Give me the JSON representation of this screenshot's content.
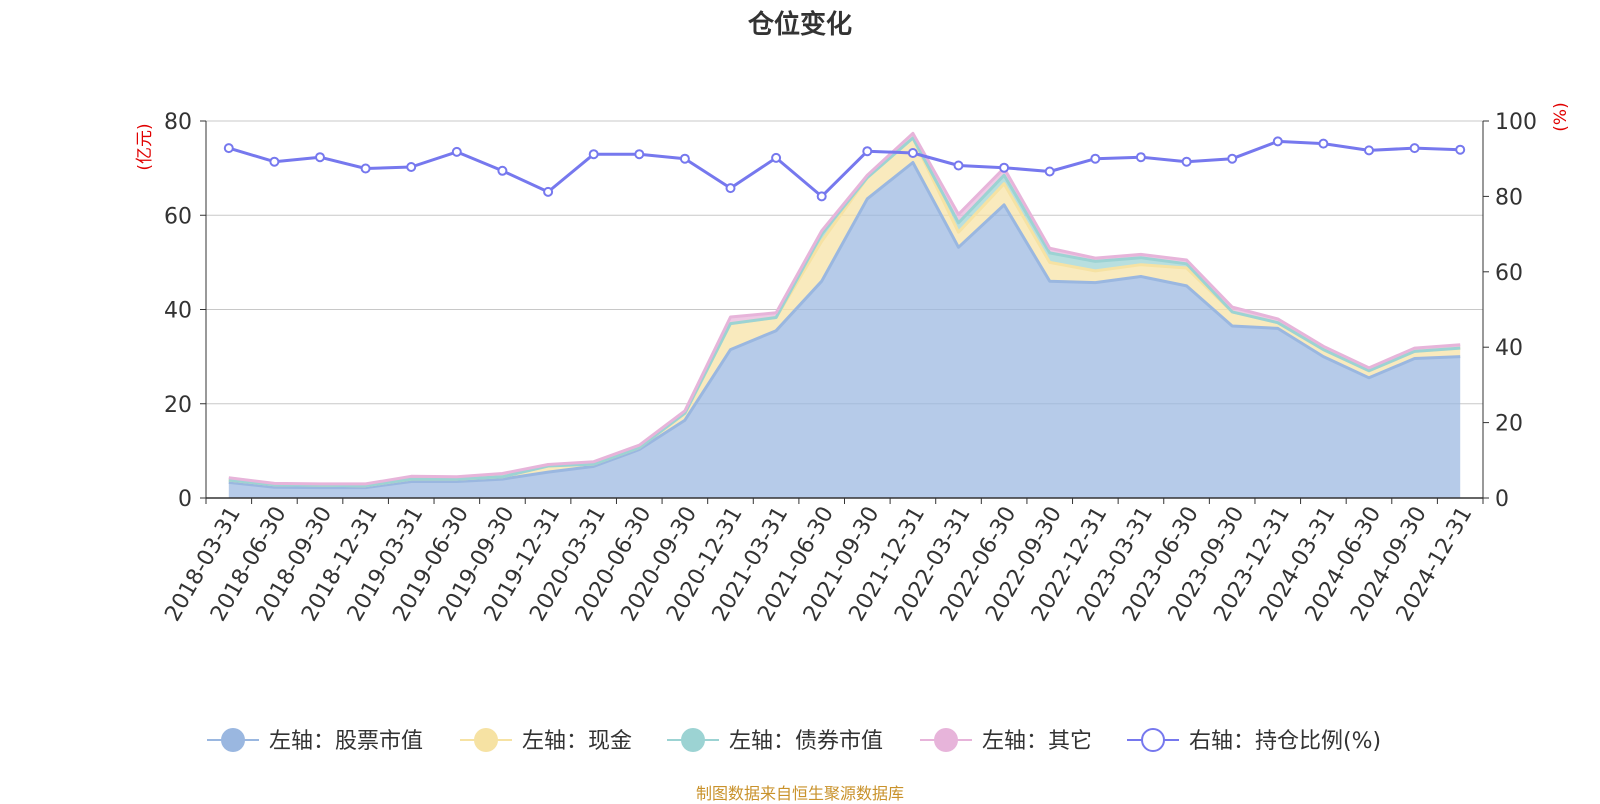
{
  "chart_data": {
    "type": "area",
    "title": "仓位变化",
    "source": "制图数据来自恒生聚源数据库",
    "ylabel_left": "(亿元)",
    "ylabel_right": "(%)",
    "ylim_left": [
      0,
      80
    ],
    "ylim_right": [
      0,
      100
    ],
    "yticks_left": [
      "0",
      "20",
      "40",
      "60",
      "80"
    ],
    "yticks_right": [
      "0",
      "20",
      "40",
      "60",
      "80",
      "100"
    ],
    "grid": true,
    "legend_position": "bottom",
    "categories": [
      "2018-03-31",
      "2018-06-30",
      "2018-09-30",
      "2018-12-31",
      "2019-03-31",
      "2019-06-30",
      "2019-09-30",
      "2019-12-31",
      "2020-03-31",
      "2020-06-30",
      "2020-09-30",
      "2020-12-31",
      "2021-03-31",
      "2021-06-30",
      "2021-09-30",
      "2021-12-31",
      "2022-03-31",
      "2022-06-30",
      "2022-09-30",
      "2022-12-31",
      "2023-03-31",
      "2023-06-30",
      "2023-09-30",
      "2023-12-31",
      "2024-03-31",
      "2024-06-30",
      "2024-09-30",
      "2024-12-31"
    ],
    "series": [
      {
        "name": "左轴：股票市值",
        "axis": "left",
        "kind": "stacked-area",
        "color": "#9ab7e0",
        "values": [
          3.3,
          2.3,
          2.2,
          2.2,
          3.5,
          3.5,
          4.0,
          5.5,
          6.7,
          10.3,
          16.5,
          31.5,
          35.5,
          46.0,
          63.5,
          71.2,
          53.2,
          62.2,
          46.0,
          45.7,
          47.0,
          45.0,
          36.5,
          36.0,
          30.0,
          25.5,
          29.6,
          30.0
        ]
      },
      {
        "name": "左轴：现金",
        "axis": "left",
        "kind": "stacked-area",
        "color": "#f6e2a3",
        "values": [
          0.5,
          0.5,
          0.5,
          0.4,
          0.5,
          0.5,
          0.5,
          1.3,
          0.5,
          0.4,
          1.5,
          5.5,
          2.8,
          8.5,
          4.5,
          5.2,
          3.2,
          4.5,
          4.0,
          2.5,
          2.5,
          3.8,
          3.0,
          1.2,
          1.5,
          1.5,
          1.5,
          1.8
        ]
      },
      {
        "name": "左轴：债券市值",
        "axis": "left",
        "kind": "stacked-area",
        "color": "#9cd3d3",
        "values": [
          0,
          0,
          0,
          0,
          0,
          0,
          0,
          0,
          0,
          0,
          0,
          0,
          0,
          1.5,
          0,
          0,
          2.0,
          1.8,
          2.0,
          2.0,
          1.5,
          0.9,
          0,
          0,
          0,
          0,
          0,
          0
        ]
      },
      {
        "name": "左轴：其它",
        "axis": "left",
        "kind": "stacked-area",
        "color": "#e7b4da",
        "values": [
          0.5,
          0.3,
          0.3,
          0.4,
          0.6,
          0.5,
          0.7,
          0.3,
          0.5,
          0.5,
          0.5,
          1.4,
          1.0,
          0.7,
          0.5,
          1.0,
          1.8,
          1.5,
          1.0,
          0.7,
          0.7,
          0.8,
          1.0,
          0.8,
          0.7,
          0.6,
          0.7,
          0.7
        ]
      },
      {
        "name": "右轴：持仓比例(%)",
        "axis": "right",
        "kind": "line",
        "color": "#7678ee",
        "values": [
          92.8,
          89.2,
          90.4,
          87.4,
          87.8,
          91.8,
          86.8,
          81.2,
          91.2,
          91.2,
          90.0,
          82.2,
          90.2,
          80.0,
          92.0,
          91.5,
          88.2,
          87.6,
          86.6,
          90.0,
          90.4,
          89.2,
          90.0,
          94.6,
          94.0,
          92.2,
          92.8,
          92.4
        ]
      }
    ]
  }
}
